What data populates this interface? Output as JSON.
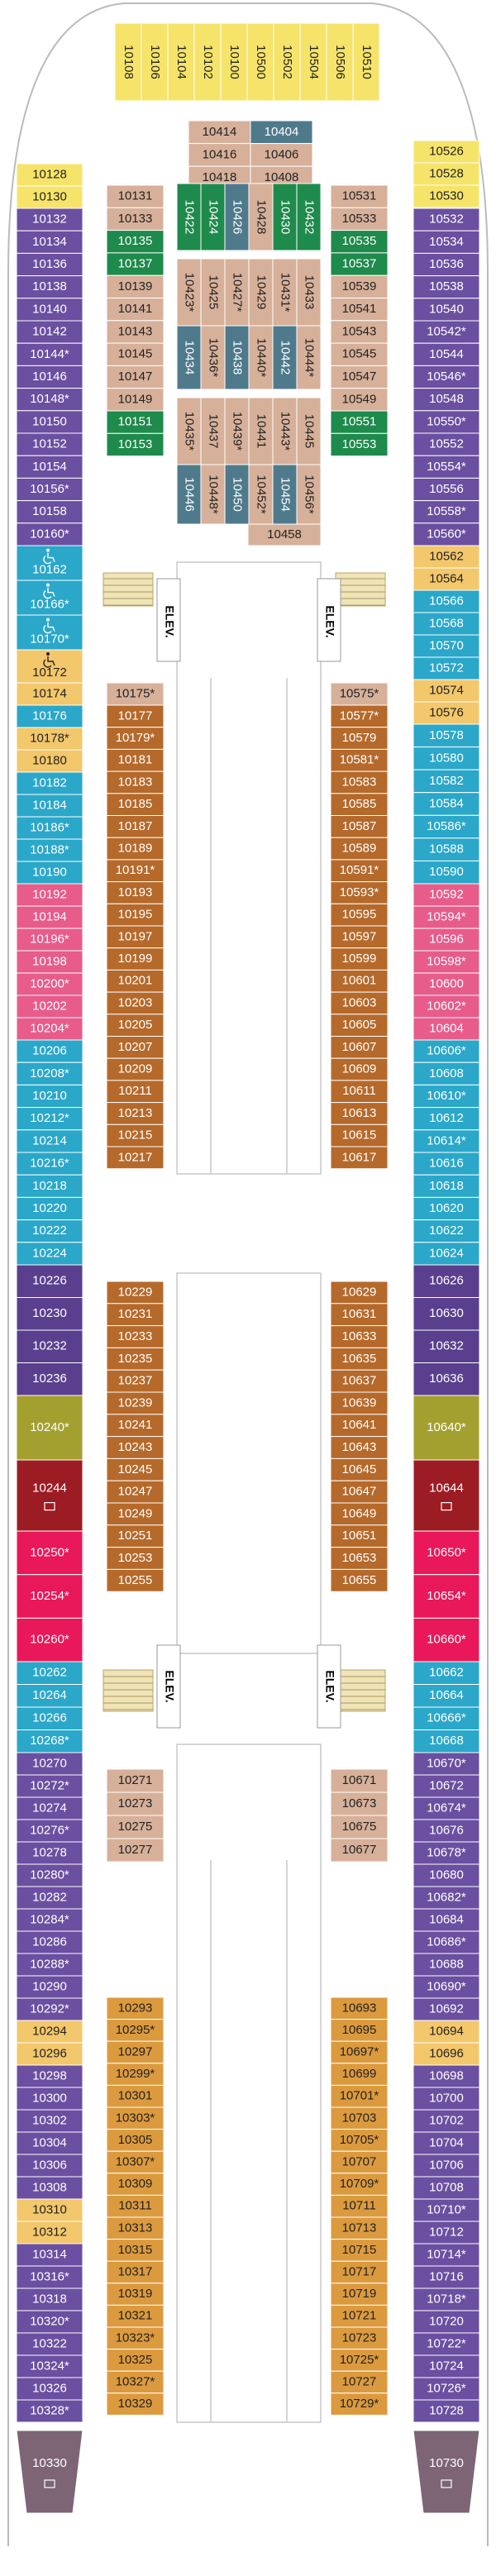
{
  "top_row": {
    "color": "#f6e46a",
    "cabins": [
      "10108",
      "10106",
      "10104",
      "10102",
      "10100",
      "10500",
      "10502",
      "10504",
      "10506",
      "10510"
    ]
  },
  "left_outer": [
    {
      "color": "#f6e46a",
      "cabins": [
        "10128",
        "10130"
      ]
    },
    {
      "color": "#6b4fa0",
      "cabins": [
        "10132",
        "10134",
        "10136",
        "10138",
        "10140",
        "10142",
        "10144*",
        "10146",
        "10148*",
        "10150",
        "10152",
        "10154",
        "10156*",
        "10158",
        "10160*"
      ]
    },
    {
      "color": "#2aa7c9",
      "accessible": true,
      "cabins": [
        "10162",
        "10166*",
        "10170*"
      ]
    },
    {
      "color": "#f3c76b",
      "accessible": true,
      "cabins": [
        "10172"
      ]
    },
    {
      "color": "#f3c76b",
      "cabins": [
        "10174"
      ]
    },
    {
      "color": "#2aa7c9",
      "cabins": [
        "10176"
      ]
    },
    {
      "color": "#f3c76b",
      "cabins": [
        "10178*",
        "10180"
      ]
    },
    {
      "color": "#2aa7c9",
      "cabins": [
        "10182",
        "10184",
        "10186*",
        "10188*",
        "10190"
      ]
    },
    {
      "color": "#e75c8a",
      "cabins": [
        "10192",
        "10194",
        "10196*",
        "10198",
        "10200*",
        "10202",
        "10204*"
      ]
    },
    {
      "color": "#2aa7c9",
      "cabins": [
        "10206",
        "10208*",
        "10210",
        "10212*",
        "10214",
        "10216*",
        "10218",
        "10220",
        "10222",
        "10224"
      ]
    },
    {
      "color": "#5a3f8e",
      "cabins": [
        "10226",
        "10230",
        "10232",
        "10236"
      ]
    },
    {
      "color": "#a3a030",
      "cabins": [
        "10240*"
      ]
    },
    {
      "color": "#9c1c24",
      "icon": true,
      "cabins": [
        "10244"
      ]
    },
    {
      "color": "#e8185a",
      "cabins": [
        "10250*",
        "10254*",
        "10260*"
      ]
    },
    {
      "color": "#2aa7c9",
      "cabins": [
        "10262",
        "10264",
        "10266",
        "10268*"
      ]
    },
    {
      "color": "#6b4fa0",
      "cabins": [
        "10270",
        "10272*",
        "10274",
        "10276*",
        "10278",
        "10280*",
        "10282",
        "10284*",
        "10286",
        "10288*",
        "10290",
        "10292*"
      ]
    },
    {
      "color": "#f3c76b",
      "cabins": [
        "10294",
        "10296"
      ]
    },
    {
      "color": "#6b4fa0",
      "cabins": [
        "10298",
        "10300",
        "10302",
        "10304",
        "10306",
        "10308"
      ]
    },
    {
      "color": "#f3c76b",
      "cabins": [
        "10310",
        "10312"
      ]
    },
    {
      "color": "#6b4fa0",
      "cabins": [
        "10314",
        "10316*",
        "10318",
        "10320*",
        "10322",
        "10324*",
        "10326",
        "10328*"
      ]
    },
    {
      "color": "#7d6576",
      "icon": true,
      "end": true,
      "cabins": [
        "10330"
      ]
    }
  ],
  "right_outer": [
    {
      "color": "#f6e46a",
      "cabins": [
        "10526",
        "10528",
        "10530"
      ]
    },
    {
      "color": "#6b4fa0",
      "cabins": [
        "10532",
        "10534",
        "10536",
        "10538",
        "10540",
        "10542*",
        "10544",
        "10546*",
        "10548",
        "10550*",
        "10552",
        "10554*",
        "10556",
        "10558*",
        "10560*"
      ]
    },
    {
      "color": "#f3c76b",
      "cabins": [
        "10562",
        "10564"
      ]
    },
    {
      "color": "#2aa7c9",
      "cabins": [
        "10566",
        "10568",
        "10570",
        "10572"
      ]
    },
    {
      "color": "#f3c76b",
      "cabins": [
        "10574",
        "10576"
      ]
    },
    {
      "color": "#2aa7c9",
      "cabins": [
        "10578",
        "10580",
        "10582",
        "10584",
        "10586*",
        "10588",
        "10590"
      ]
    },
    {
      "color": "#e75c8a",
      "cabins": [
        "10592",
        "10594*",
        "10596",
        "10598*",
        "10600",
        "10602*",
        "10604"
      ]
    },
    {
      "color": "#2aa7c9",
      "cabins": [
        "10606*",
        "10608",
        "10610*",
        "10612",
        "10614*",
        "10616",
        "10618",
        "10620",
        "10622",
        "10624"
      ]
    },
    {
      "color": "#5a3f8e",
      "cabins": [
        "10626",
        "10630",
        "10632",
        "10636"
      ]
    },
    {
      "color": "#a3a030",
      "cabins": [
        "10640*"
      ]
    },
    {
      "color": "#9c1c24",
      "icon": true,
      "cabins": [
        "10644"
      ]
    },
    {
      "color": "#e8185a",
      "cabins": [
        "10650*",
        "10654*",
        "10660*"
      ]
    },
    {
      "color": "#2aa7c9",
      "cabins": [
        "10662",
        "10664",
        "10666*",
        "10668"
      ]
    },
    {
      "color": "#6b4fa0",
      "cabins": [
        "10670*",
        "10672",
        "10674*",
        "10676",
        "10678*",
        "10680",
        "10682*",
        "10684",
        "10686*",
        "10688",
        "10690*",
        "10692"
      ]
    },
    {
      "color": "#f3c76b",
      "cabins": [
        "10694",
        "10696"
      ]
    },
    {
      "color": "#6b4fa0",
      "cabins": [
        "10698",
        "10700",
        "10702",
        "10704",
        "10706",
        "10708",
        "10710*",
        "10712",
        "10714*",
        "10716",
        "10718*",
        "10720",
        "10722*",
        "10724",
        "10726*",
        "10728"
      ]
    },
    {
      "color": "#7d6576",
      "icon": true,
      "end": true,
      "cabins": [
        "10730"
      ]
    }
  ],
  "left_inner": [
    {
      "color": "#d7b09a",
      "cabins": [
        "10131",
        "10133"
      ]
    },
    {
      "color": "#1e8a4b",
      "cabins": [
        "10135",
        "10137"
      ]
    },
    {
      "color": "#d7b09a",
      "cabins": [
        "10139",
        "10141",
        "10143",
        "10145",
        "10147",
        "10149"
      ]
    },
    {
      "color": "#1e8a4b",
      "cabins": [
        "10151",
        "10153"
      ]
    },
    {
      "color": "#d7b09a",
      "cabins": [
        "10175*"
      ]
    },
    {
      "color": "#b5692a",
      "cabins": [
        "10177",
        "10179*",
        "10181",
        "10183",
        "10185",
        "10187",
        "10189",
        "10191*",
        "10193",
        "10195",
        "10197",
        "10199",
        "10201",
        "10203",
        "10205",
        "10207",
        "10209",
        "10211",
        "10213",
        "10215",
        "10217"
      ]
    },
    {
      "color": "#b5692a",
      "cabins": [
        "10229",
        "10231",
        "10233",
        "10235",
        "10237",
        "10239",
        "10241",
        "10243",
        "10245",
        "10247",
        "10249",
        "10251",
        "10253",
        "10255"
      ]
    },
    {
      "color": "#d7b09a",
      "cabins": [
        "10271",
        "10273",
        "10275",
        "10277"
      ]
    },
    {
      "color": "#dc9a3e",
      "cabins": [
        "10293",
        "10295*",
        "10297",
        "10299*",
        "10301",
        "10303*",
        "10305",
        "10307*",
        "10309",
        "10311",
        "10313",
        "10315",
        "10317",
        "10319",
        "10321",
        "10323*",
        "10325",
        "10327*",
        "10329"
      ]
    }
  ],
  "right_inner": [
    {
      "color": "#d7b09a",
      "cabins": [
        "10531",
        "10533"
      ]
    },
    {
      "color": "#1e8a4b",
      "cabins": [
        "10535",
        "10537"
      ]
    },
    {
      "color": "#d7b09a",
      "cabins": [
        "10539",
        "10541",
        "10543",
        "10545",
        "10547",
        "10549"
      ]
    },
    {
      "color": "#1e8a4b",
      "cabins": [
        "10551",
        "10553"
      ]
    },
    {
      "color": "#d7b09a",
      "cabins": [
        "10575*"
      ]
    },
    {
      "color": "#b5692a",
      "cabins": [
        "10577*",
        "10579",
        "10581*",
        "10583",
        "10585",
        "10587",
        "10589",
        "10591*",
        "10593*",
        "10595",
        "10597",
        "10599",
        "10601",
        "10603",
        "10605",
        "10607",
        "10609",
        "10611",
        "10613",
        "10615",
        "10617"
      ]
    },
    {
      "color": "#b5692a",
      "cabins": [
        "10629",
        "10631",
        "10633",
        "10635",
        "10637",
        "10639",
        "10641",
        "10643",
        "10645",
        "10647",
        "10649",
        "10651",
        "10653",
        "10655"
      ]
    },
    {
      "color": "#d7b09a",
      "cabins": [
        "10671",
        "10673",
        "10675",
        "10677"
      ]
    },
    {
      "color": "#dc9a3e",
      "cabins": [
        "10693",
        "10695",
        "10697*",
        "10699",
        "10701*",
        "10703",
        "10705*",
        "10707",
        "10709*",
        "10711",
        "10713",
        "10715",
        "10717",
        "10719",
        "10721",
        "10723",
        "10725*",
        "10727",
        "10729*"
      ]
    }
  ],
  "center_top": [
    {
      "cabins": [
        "10414",
        "10404"
      ],
      "colors": [
        "#d7b09a",
        "#4f7a8c"
      ]
    },
    {
      "cabins": [
        "10416",
        "10406"
      ],
      "colors": [
        "#d7b09a",
        "#d7b09a"
      ]
    },
    {
      "cabins": [
        "10418",
        "10408"
      ],
      "colors": [
        "#d7b09a",
        "#d7b09a"
      ]
    }
  ],
  "center_columns": [
    {
      "cabins": [
        "10422",
        "10424",
        "10426",
        "10428",
        "10430",
        "10432"
      ],
      "colors": [
        "#1e8a4b",
        "#1e8a4b",
        "#4f7a8c",
        "#d7b09a",
        "#1e8a4b",
        "#1e8a4b"
      ]
    },
    {
      "cabins": [
        "10423*",
        "10425",
        "10427*",
        "10429",
        "10431*",
        "10433"
      ],
      "colors": [
        "#d7b09a",
        "#d7b09a",
        "#d7b09a",
        "#d7b09a",
        "#d7b09a",
        "#d7b09a"
      ]
    },
    {
      "cabins": [
        "10434",
        "10436*",
        "10438",
        "10440*",
        "10442",
        "10444*"
      ],
      "colors": [
        "#4f7a8c",
        "#d7b09a",
        "#4f7a8c",
        "#d7b09a",
        "#4f7a8c",
        "#d7b09a"
      ]
    },
    {
      "cabins": [
        "10435*",
        "10437",
        "10439*",
        "10441",
        "10443*",
        "10445"
      ],
      "colors": [
        "#d7b09a",
        "#d7b09a",
        "#d7b09a",
        "#d7b09a",
        "#d7b09a",
        "#d7b09a"
      ]
    },
    {
      "cabins": [
        "10446",
        "10448*",
        "10450",
        "10452*",
        "10454",
        "10456*"
      ],
      "colors": [
        "#4f7a8c",
        "#d7b09a",
        "#4f7a8c",
        "#d7b09a",
        "#4f7a8c",
        "#d7b09a"
      ]
    }
  ],
  "center_bottom": {
    "color": "#d7b09a",
    "cabins": [
      "10458"
    ]
  },
  "elevators": [
    "ELEV.",
    "ELEV.",
    "ELEV.",
    "ELEV."
  ]
}
